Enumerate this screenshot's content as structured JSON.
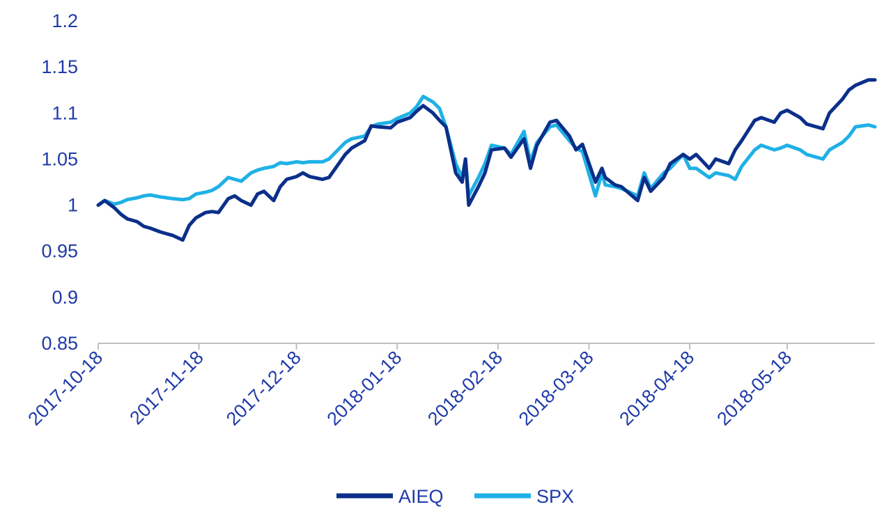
{
  "chart_data": {
    "type": "line",
    "title": "",
    "xlabel": "",
    "ylabel": "",
    "ylim": [
      0.85,
      1.2
    ],
    "yticks": [
      0.85,
      0.9,
      0.95,
      1,
      1.05,
      1.1,
      1.15,
      1.2
    ],
    "yticks_text": [
      "0.85",
      "0.9",
      "0.95",
      "1",
      "1.05",
      "1.1",
      "1.15",
      "1.2"
    ],
    "xlim": [
      "2017-10-18",
      "2018-06-14"
    ],
    "xticks": [
      "2017-10-18",
      "2017-11-18",
      "2017-12-18",
      "2018-01-18",
      "2018-02-18",
      "2018-03-18",
      "2018-04-18",
      "2018-05-18"
    ],
    "grid": false,
    "legend": "bottom",
    "series": [
      {
        "name": "AIEQ",
        "color": "#0b2f8a",
        "x": [
          "2017-10-18",
          "2017-10-20",
          "2017-10-23",
          "2017-10-25",
          "2017-10-27",
          "2017-10-30",
          "2017-11-01",
          "2017-11-03",
          "2017-11-06",
          "2017-11-08",
          "2017-11-10",
          "2017-11-13",
          "2017-11-15",
          "2017-11-17",
          "2017-11-20",
          "2017-11-22",
          "2017-11-24",
          "2017-11-27",
          "2017-11-29",
          "2017-12-01",
          "2017-12-04",
          "2017-12-06",
          "2017-12-08",
          "2017-12-11",
          "2017-12-13",
          "2017-12-15",
          "2017-12-18",
          "2017-12-20",
          "2017-12-22",
          "2017-12-26",
          "2017-12-28",
          "2018-01-02",
          "2018-01-04",
          "2018-01-08",
          "2018-01-10",
          "2018-01-12",
          "2018-01-16",
          "2018-01-18",
          "2018-01-22",
          "2018-01-24",
          "2018-01-26",
          "2018-01-29",
          "2018-01-31",
          "2018-02-02",
          "2018-02-05",
          "2018-02-07",
          "2018-02-08",
          "2018-02-09",
          "2018-02-12",
          "2018-02-14",
          "2018-02-16",
          "2018-02-20",
          "2018-02-22",
          "2018-02-26",
          "2018-02-28",
          "2018-03-02",
          "2018-03-06",
          "2018-03-08",
          "2018-03-12",
          "2018-03-14",
          "2018-03-16",
          "2018-03-20",
          "2018-03-22",
          "2018-03-23",
          "2018-03-26",
          "2018-03-28",
          "2018-04-02",
          "2018-04-04",
          "2018-04-06",
          "2018-04-10",
          "2018-04-12",
          "2018-04-16",
          "2018-04-18",
          "2018-04-20",
          "2018-04-24",
          "2018-04-26",
          "2018-04-30",
          "2018-05-02",
          "2018-05-04",
          "2018-05-08",
          "2018-05-10",
          "2018-05-14",
          "2018-05-16",
          "2018-05-18",
          "2018-05-22",
          "2018-05-24",
          "2018-05-29",
          "2018-05-31",
          "2018-06-04",
          "2018-06-06",
          "2018-06-08",
          "2018-06-12",
          "2018-06-14"
        ],
        "values": [
          1.0,
          1.005,
          0.997,
          0.99,
          0.985,
          0.982,
          0.977,
          0.975,
          0.971,
          0.969,
          0.967,
          0.962,
          0.978,
          0.986,
          0.992,
          0.993,
          0.992,
          1.007,
          1.01,
          1.005,
          1.0,
          1.012,
          1.015,
          1.005,
          1.02,
          1.028,
          1.031,
          1.035,
          1.031,
          1.028,
          1.03,
          1.055,
          1.062,
          1.07,
          1.086,
          1.085,
          1.084,
          1.09,
          1.095,
          1.102,
          1.108,
          1.1,
          1.092,
          1.085,
          1.035,
          1.025,
          1.05,
          1.0,
          1.02,
          1.035,
          1.06,
          1.062,
          1.052,
          1.072,
          1.04,
          1.065,
          1.09,
          1.092,
          1.075,
          1.06,
          1.066,
          1.025,
          1.04,
          1.03,
          1.022,
          1.02,
          1.005,
          1.03,
          1.015,
          1.03,
          1.045,
          1.055,
          1.05,
          1.055,
          1.04,
          1.05,
          1.045,
          1.06,
          1.07,
          1.092,
          1.095,
          1.09,
          1.1,
          1.103,
          1.095,
          1.088,
          1.083,
          1.1,
          1.115,
          1.125,
          1.13,
          1.136,
          1.136
        ]
      },
      {
        "name": "SPX",
        "color": "#1fb1e6",
        "x": [
          "2017-10-18",
          "2017-10-20",
          "2017-10-23",
          "2017-10-25",
          "2017-10-27",
          "2017-10-30",
          "2017-11-01",
          "2017-11-03",
          "2017-11-06",
          "2017-11-08",
          "2017-11-10",
          "2017-11-13",
          "2017-11-15",
          "2017-11-17",
          "2017-11-20",
          "2017-11-22",
          "2017-11-24",
          "2017-11-27",
          "2017-11-29",
          "2017-12-01",
          "2017-12-04",
          "2017-12-06",
          "2017-12-08",
          "2017-12-11",
          "2017-12-13",
          "2017-12-15",
          "2017-12-18",
          "2017-12-20",
          "2017-12-22",
          "2017-12-26",
          "2017-12-28",
          "2018-01-02",
          "2018-01-04",
          "2018-01-08",
          "2018-01-10",
          "2018-01-12",
          "2018-01-16",
          "2018-01-18",
          "2018-01-22",
          "2018-01-24",
          "2018-01-26",
          "2018-01-29",
          "2018-01-31",
          "2018-02-02",
          "2018-02-05",
          "2018-02-07",
          "2018-02-08",
          "2018-02-09",
          "2018-02-12",
          "2018-02-14",
          "2018-02-16",
          "2018-02-20",
          "2018-02-22",
          "2018-02-26",
          "2018-02-28",
          "2018-03-02",
          "2018-03-06",
          "2018-03-08",
          "2018-03-12",
          "2018-03-14",
          "2018-03-16",
          "2018-03-20",
          "2018-03-22",
          "2018-03-23",
          "2018-03-26",
          "2018-03-28",
          "2018-04-02",
          "2018-04-04",
          "2018-04-06",
          "2018-04-10",
          "2018-04-12",
          "2018-04-16",
          "2018-04-18",
          "2018-04-20",
          "2018-04-24",
          "2018-04-26",
          "2018-04-30",
          "2018-05-02",
          "2018-05-04",
          "2018-05-08",
          "2018-05-10",
          "2018-05-14",
          "2018-05-16",
          "2018-05-18",
          "2018-05-22",
          "2018-05-24",
          "2018-05-29",
          "2018-05-31",
          "2018-06-04",
          "2018-06-06",
          "2018-06-08",
          "2018-06-12",
          "2018-06-14"
        ],
        "values": [
          1.0,
          1.005,
          1.001,
          1.003,
          1.006,
          1.008,
          1.01,
          1.011,
          1.009,
          1.008,
          1.007,
          1.006,
          1.007,
          1.012,
          1.014,
          1.016,
          1.02,
          1.03,
          1.028,
          1.026,
          1.035,
          1.038,
          1.04,
          1.042,
          1.046,
          1.045,
          1.047,
          1.046,
          1.047,
          1.047,
          1.05,
          1.068,
          1.072,
          1.075,
          1.085,
          1.088,
          1.09,
          1.094,
          1.1,
          1.107,
          1.118,
          1.112,
          1.105,
          1.085,
          1.045,
          1.03,
          1.05,
          1.01,
          1.03,
          1.045,
          1.065,
          1.062,
          1.055,
          1.08,
          1.047,
          1.068,
          1.085,
          1.087,
          1.07,
          1.062,
          1.058,
          1.01,
          1.035,
          1.022,
          1.02,
          1.018,
          1.01,
          1.035,
          1.018,
          1.035,
          1.04,
          1.055,
          1.04,
          1.04,
          1.03,
          1.035,
          1.032,
          1.028,
          1.042,
          1.06,
          1.065,
          1.06,
          1.062,
          1.065,
          1.06,
          1.055,
          1.05,
          1.06,
          1.068,
          1.075,
          1.085,
          1.087,
          1.085
        ]
      }
    ]
  }
}
